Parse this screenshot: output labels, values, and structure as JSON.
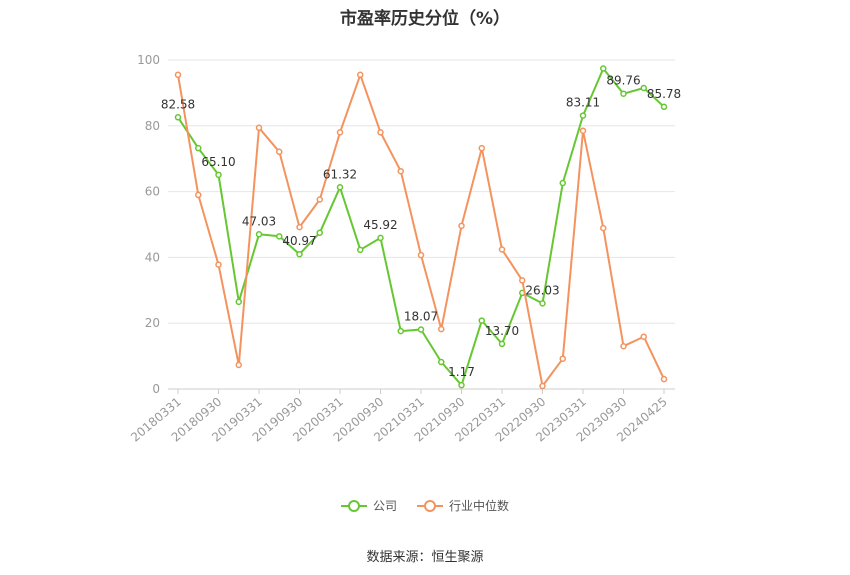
{
  "chart_data": {
    "type": "line",
    "title": "市盈率历史分位（%）",
    "ylim": [
      0,
      100
    ],
    "yticks": [
      0,
      20,
      40,
      60,
      80,
      100
    ],
    "x": [
      "20180331",
      "20180630",
      "20180930",
      "20181231",
      "20190331",
      "20190630",
      "20190930",
      "20191231",
      "20200331",
      "20200630",
      "20200930",
      "20201231",
      "20210331",
      "20210630",
      "20210930",
      "20211231",
      "20220331",
      "20220630",
      "20220930",
      "20221231",
      "20230331",
      "20230630",
      "20230930",
      "20231231",
      "20240425"
    ],
    "xtick_labels": [
      "20180331",
      "20180930",
      "20190331",
      "20190930",
      "20200331",
      "20200930",
      "20210331",
      "20210930",
      "20220331",
      "20220930",
      "20230331",
      "20230930",
      "20240425"
    ],
    "grid": true,
    "legend_position": "bottom",
    "series": [
      {
        "name": "公司",
        "color": "#66c733",
        "values": [
          82.58,
          73.2,
          65.1,
          26.5,
          47.03,
          46.4,
          40.97,
          47.5,
          61.32,
          42.3,
          45.92,
          17.6,
          18.07,
          8.2,
          1.17,
          20.8,
          13.7,
          29.2,
          26.03,
          62.6,
          83.11,
          97.4,
          89.76,
          91.5,
          85.78
        ],
        "labeled": [
          0,
          2,
          4,
          6,
          8,
          10,
          12,
          14,
          16,
          18,
          20,
          22,
          24
        ]
      },
      {
        "name": "行业中位数",
        "color": "#f4935e",
        "values": [
          95.5,
          59.0,
          37.8,
          7.3,
          79.4,
          72.1,
          49.2,
          57.6,
          78.0,
          95.5,
          78.0,
          66.2,
          40.7,
          18.2,
          49.6,
          73.2,
          42.4,
          33.0,
          0.9,
          9.2,
          78.5,
          48.9,
          13.0,
          15.9,
          3.0
        ],
        "labeled": []
      }
    ]
  },
  "source_text": "数据来源：恒生聚源"
}
